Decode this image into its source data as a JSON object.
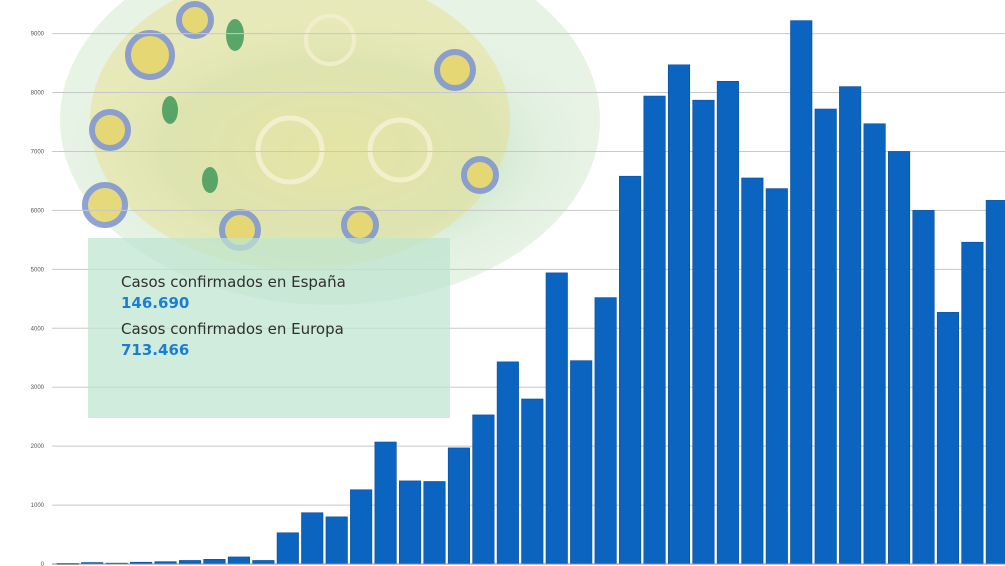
{
  "colors": {
    "bar": "#0a64c0",
    "bar_stroke": "#0a4f9c",
    "grid": "#c8c8c8",
    "info_value": "#1a7fd2",
    "virus_body": "#e8d86a",
    "virus_bg": "#c9e7d4",
    "virus_spike": "#7d93d0"
  },
  "info_box": {
    "spain_label": "Casos confirmados en España",
    "spain_value": "146.690",
    "europe_label": "Casos confirmados en Europa",
    "europe_value": "713.466"
  },
  "chart_data": {
    "type": "bar",
    "title": "",
    "xlabel": "",
    "ylabel": "",
    "ylim": [
      0,
      9500
    ],
    "yticks": [
      0,
      1000,
      2000,
      3000,
      4000,
      5000,
      6000,
      7000,
      8000,
      9000
    ],
    "ytick_labels": [
      "0",
      "1000",
      "2000",
      "3000",
      "4000",
      "5000",
      "6000",
      "7000",
      "8000",
      "9000"
    ],
    "grid": true,
    "legend": "none",
    "values": [
      10,
      25,
      15,
      30,
      40,
      60,
      80,
      120,
      60,
      530,
      870,
      800,
      1260,
      2070,
      1410,
      1400,
      1970,
      2530,
      3430,
      2800,
      4940,
      3450,
      4520,
      6580,
      7940,
      8470,
      7870,
      8190,
      6550,
      6370,
      9220,
      7720,
      8100,
      7470,
      7000,
      6000,
      4270,
      5460,
      6170
    ]
  }
}
